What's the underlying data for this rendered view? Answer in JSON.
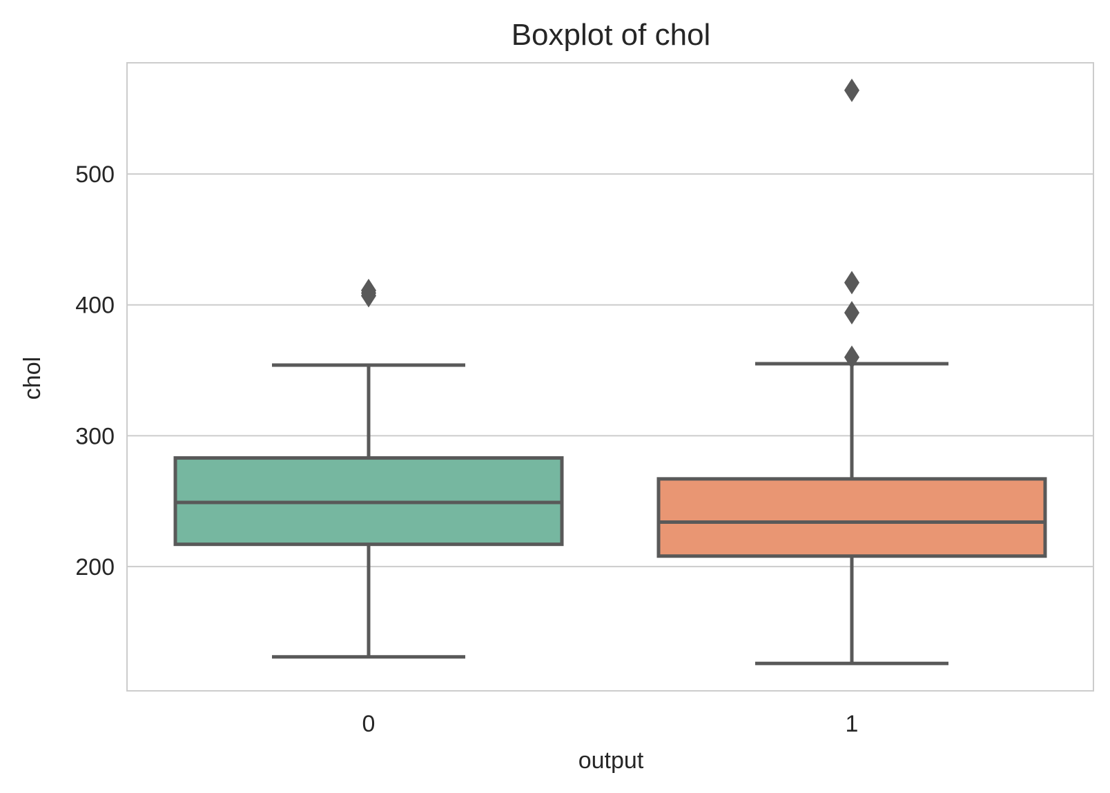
{
  "chart_data": {
    "type": "box",
    "title": "Boxplot of chol",
    "xlabel": "output",
    "ylabel": "chol",
    "categories": [
      "0",
      "1"
    ],
    "yticks": [
      200,
      300,
      400,
      500
    ],
    "ylim": [
      105,
      585
    ],
    "grid": "horizontal",
    "colors": [
      "#76b7a0",
      "#e99673"
    ],
    "edge_color": "#595959",
    "boxes": [
      {
        "category": "0",
        "whisker_low": 131,
        "q1": 217,
        "median": 249,
        "q3": 283,
        "whisker_high": 354,
        "outliers": [
          407,
          409,
          411
        ]
      },
      {
        "category": "1",
        "whisker_low": 126,
        "q1": 208,
        "median": 234,
        "q3": 267,
        "whisker_high": 355,
        "outliers": [
          360,
          394,
          417,
          564
        ]
      }
    ]
  }
}
